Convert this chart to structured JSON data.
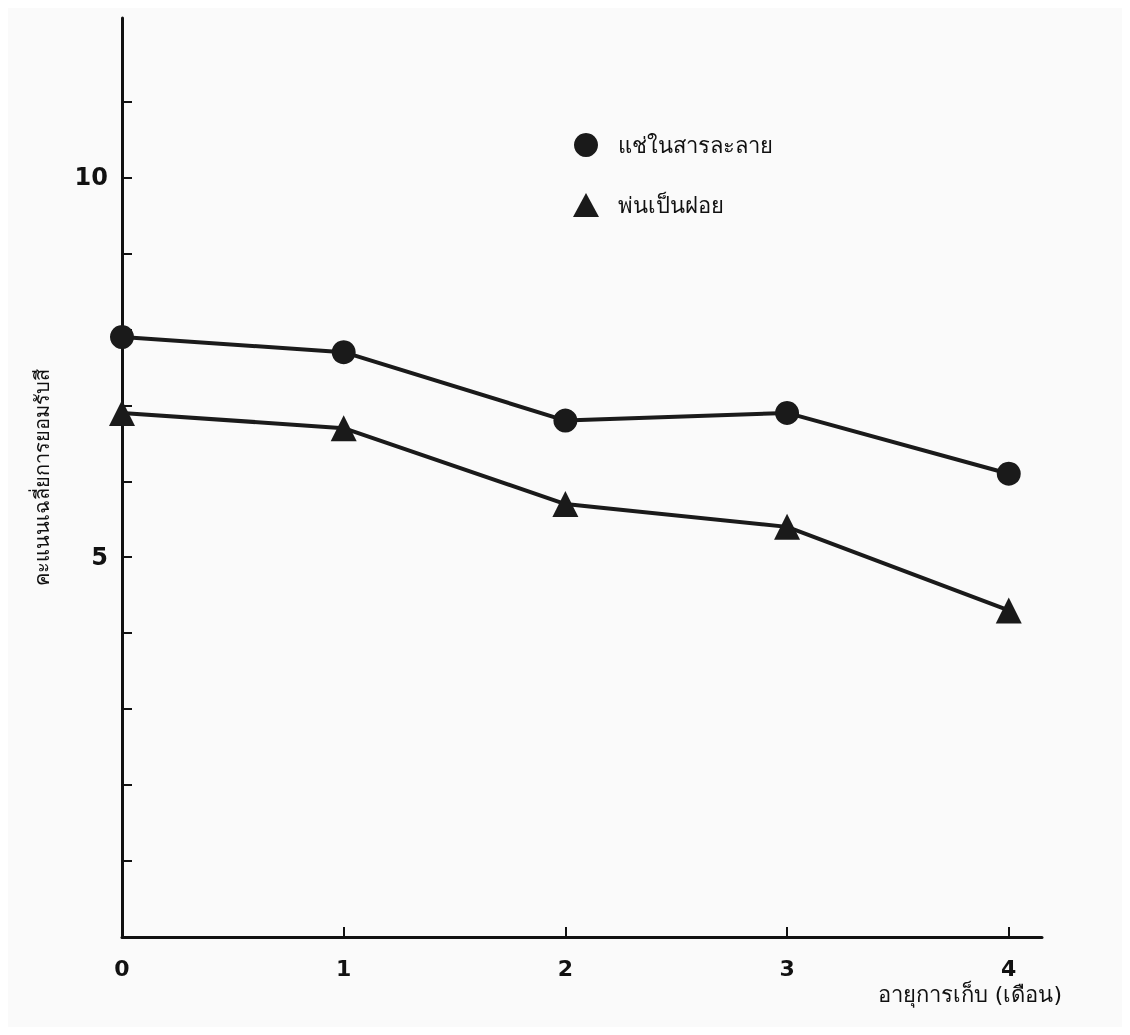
{
  "chart_data": {
    "type": "line",
    "xlabel": "อายุการเก็บ (เดือน)",
    "ylabel": "คะแนนเฉลี่ยการยอมรับสี",
    "x": [
      0,
      1,
      2,
      3,
      4
    ],
    "series": [
      {
        "name": "แช่ในสารละลาย",
        "color": "#1a1a1a",
        "marker": "circle",
        "values": [
          7.9,
          7.7,
          6.8,
          6.9,
          6.1
        ]
      },
      {
        "name": "พ่นเป็นฝอย",
        "color": "#1a1a1a",
        "marker": "triangle",
        "values": [
          6.9,
          6.7,
          5.7,
          5.4,
          4.3
        ]
      }
    ],
    "xlim": [
      0,
      4.15
    ],
    "xticks": [
      0,
      1,
      2,
      3,
      4
    ],
    "ylim": [
      0,
      12.1
    ],
    "yticks": [
      {
        "value": 1,
        "label": null
      },
      {
        "value": 2,
        "label": null
      },
      {
        "value": 3,
        "label": null
      },
      {
        "value": 4,
        "label": null
      },
      5,
      {
        "value": 6,
        "label": null
      },
      {
        "value": 7,
        "label": null
      },
      {
        "value": 8,
        "label": null
      },
      {
        "value": 9,
        "label": null
      },
      10,
      {
        "value": 11,
        "label": null
      }
    ],
    "legend": "top",
    "grid": false,
    "line_style": "solid"
  }
}
